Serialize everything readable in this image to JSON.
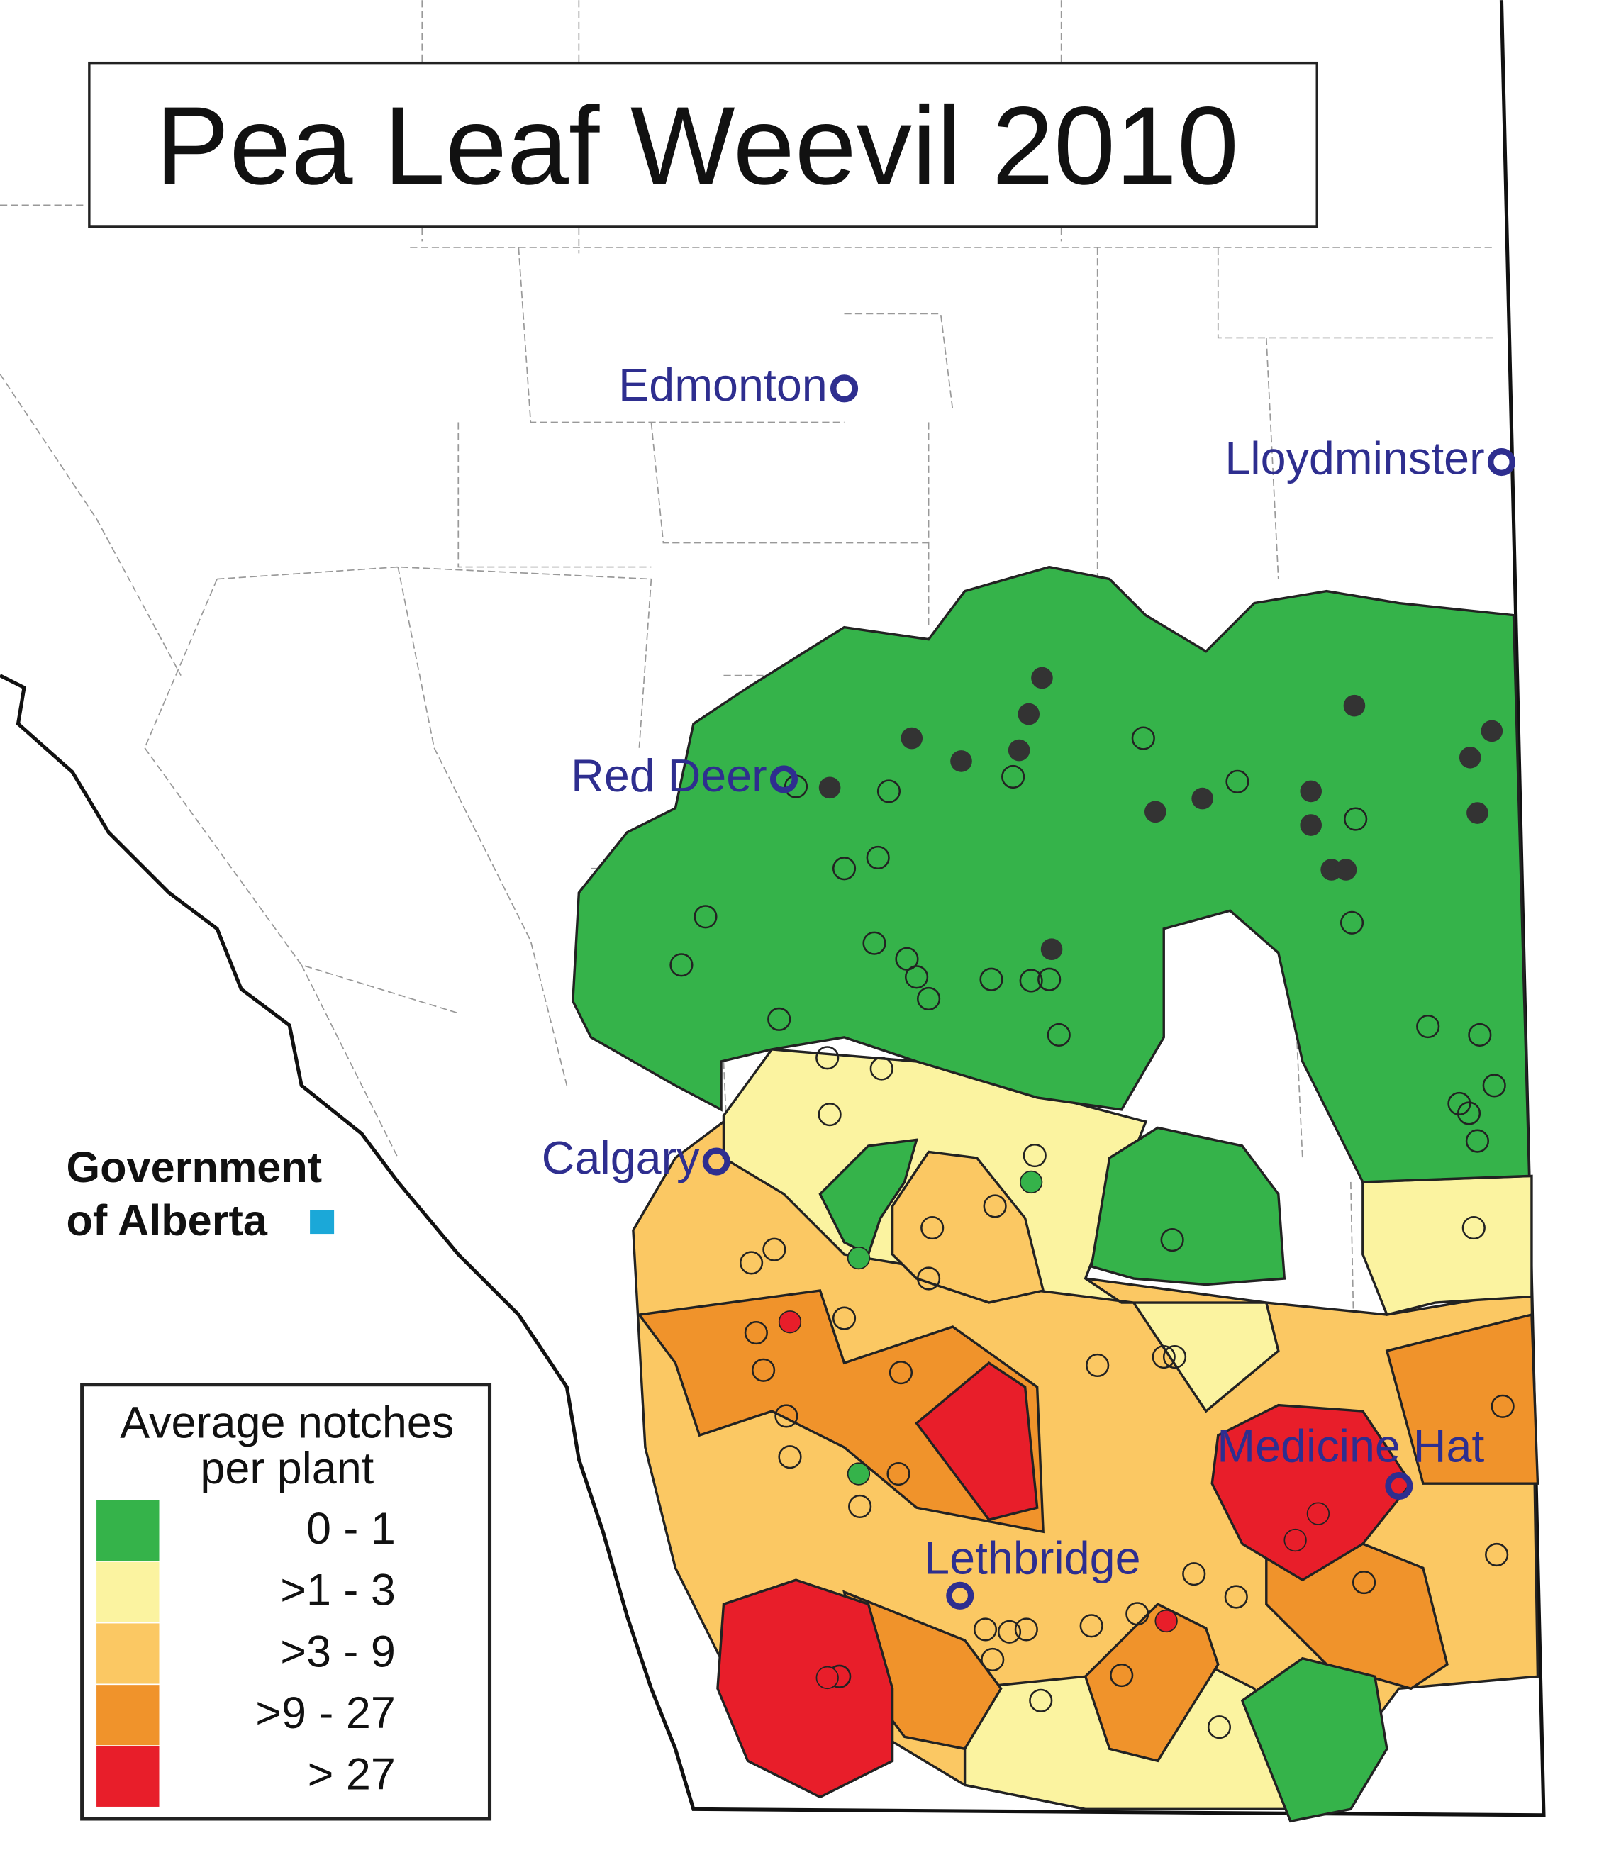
{
  "header": {
    "title": "Pea Leaf Weevil 2010"
  },
  "cities": [
    {
      "name": "Edmonton"
    },
    {
      "name": "Lloydminster"
    },
    {
      "name": "Red Deer"
    },
    {
      "name": "Calgary"
    },
    {
      "name": "Medicine Hat"
    },
    {
      "name": "Lethbridge"
    }
  ],
  "logo": {
    "lines": [
      "Government",
      "of Alberta"
    ]
  },
  "legend": {
    "title_lines": [
      "Average notches",
      "per plant"
    ],
    "items": [
      {
        "label": "0 -  1",
        "color": "#35b34a"
      },
      {
        "label": ">1 -  3",
        "color": "#fbf3a0"
      },
      {
        "label": ">3 -  9",
        "color": "#fbc863"
      },
      {
        "label": ">9 - 27",
        "color": "#f0932b"
      },
      {
        "label": "> 27",
        "color": "#e81e2a"
      }
    ]
  }
}
